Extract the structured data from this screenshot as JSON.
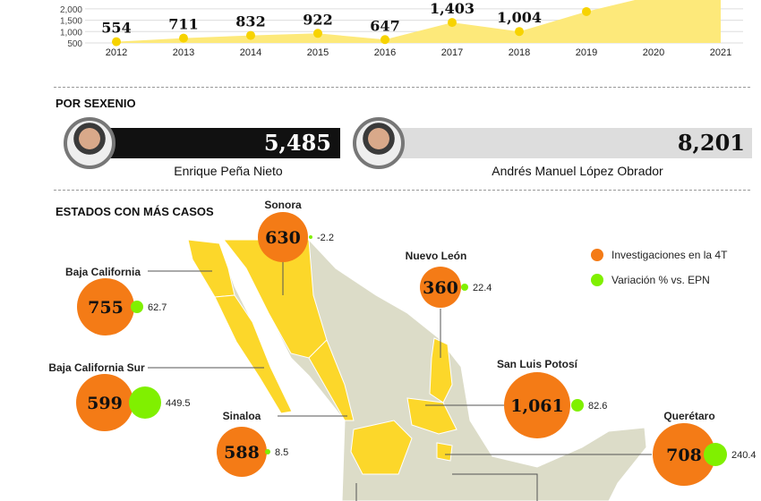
{
  "colors": {
    "area": "#fde97a",
    "dot": "#f7d300",
    "orange": "#f47b16",
    "green": "#80f000",
    "map_grey": "#dcdcc8",
    "map_yellow": "#fcd72a",
    "bar_epn": "#111111",
    "bar_amlo": "#dddddd"
  },
  "chart_data": {
    "type": "area",
    "title": "",
    "x": [
      "2012",
      "2013",
      "2014",
      "2015",
      "2016",
      "2017",
      "2018",
      "2019",
      "2020",
      "2021"
    ],
    "values": [
      554,
      711,
      832,
      922,
      647,
      1403,
      1004,
      1880,
      null,
      null
    ],
    "data_labels": [
      "554",
      "711",
      "832",
      "922",
      "647",
      "1,403",
      "1,004",
      "",
      "",
      ""
    ],
    "y_ticks": [
      "500",
      "1,000",
      "1,500",
      "2,000"
    ],
    "ylim": [
      500,
      2000
    ],
    "grid": true
  },
  "sexenio": {
    "title": "POR SEXENIO",
    "epn": {
      "name": "Enrique Peña Nieto",
      "value": "5,485"
    },
    "amlo": {
      "name": "Andrés Manuel López Obrador",
      "value": "8,201"
    }
  },
  "estados": {
    "title": "ESTADOS CON MÁS CASOS",
    "legend": {
      "investigaciones": "Investigaciones en la 4T",
      "variacion": "Variación % vs. EPN"
    },
    "items": [
      {
        "name": "Sonora",
        "cases": "630",
        "variation": "-2.2"
      },
      {
        "name": "Baja California",
        "cases": "755",
        "variation": "62.7"
      },
      {
        "name": "Baja California Sur",
        "cases": "599",
        "variation": "449.5"
      },
      {
        "name": "Sinaloa",
        "cases": "588",
        "variation": "8.5"
      },
      {
        "name": "Nuevo León",
        "cases": "360",
        "variation": "22.4"
      },
      {
        "name": "San Luis Potosí",
        "cases": "1,061",
        "variation": "82.6"
      },
      {
        "name": "Querétaro",
        "cases": "708",
        "variation": "240.4"
      }
    ]
  }
}
